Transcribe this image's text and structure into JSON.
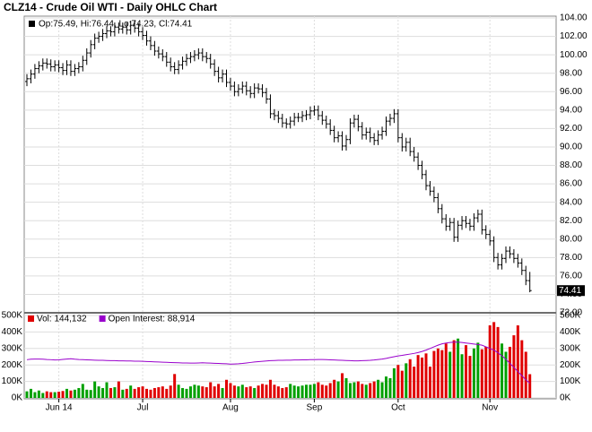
{
  "chart_data": [
    {
      "type": "ohlc",
      "title": "CLZ14 - Crude Oil WTI - Daily OHLC Chart",
      "legend": "Op:75.49, Hi:76.44, Lo:74.23, Cl:74.41",
      "color": "#000000",
      "grid": true,
      "open": [
        97.1,
        97.4,
        97.9,
        98.5,
        98.8,
        99.1,
        99.0,
        98.7,
        98.9,
        98.6,
        98.3,
        98.9,
        98.2,
        98.5,
        98.7,
        99.4,
        100.2,
        101.1,
        101.8,
        102.0,
        102.3,
        102.6,
        102.5,
        103.0,
        102.8,
        103.0,
        102.7,
        103.2,
        102.9,
        102.5,
        102.1,
        101.5,
        101.0,
        100.4,
        100.1,
        99.8,
        99.2,
        98.7,
        98.4,
        98.9,
        99.3,
        99.6,
        99.8,
        100.0,
        100.2,
        99.8,
        99.6,
        99.0,
        98.2,
        97.5,
        97.9,
        97.0,
        96.6,
        96.0,
        96.3,
        96.6,
        96.1,
        95.8,
        96.4,
        96.3,
        95.9,
        95.2,
        93.6,
        93.4,
        93.1,
        92.6,
        92.5,
        92.8,
        93.2,
        93.2,
        93.4,
        93.5,
        93.9,
        94.0,
        93.4,
        92.9,
        92.5,
        91.8,
        91.0,
        91.2,
        90.1,
        90.8,
        92.6,
        93.0,
        92.2,
        91.3,
        91.6,
        91.0,
        90.7,
        91.3,
        91.7,
        92.8,
        93.1,
        93.6,
        91.0,
        90.0,
        90.5,
        89.5,
        88.9,
        88.0,
        87.0,
        85.8,
        85.2,
        84.5,
        83.3,
        82.2,
        81.4,
        81.8,
        80.2,
        81.5,
        82.0,
        81.7,
        81.4,
        82.3,
        82.7,
        81.0,
        80.5,
        79.8,
        78.0,
        77.2,
        77.9,
        78.7,
        78.4,
        77.9,
        77.4,
        76.6,
        75.49
      ],
      "high": [
        97.9,
        98.4,
        99.0,
        99.3,
        99.6,
        99.6,
        99.5,
        99.4,
        99.4,
        99.1,
        99.4,
        99.4,
        99.0,
        99.2,
        99.9,
        100.7,
        101.6,
        102.3,
        102.5,
        102.8,
        103.1,
        103.1,
        103.5,
        103.5,
        103.5,
        103.5,
        103.7,
        103.7,
        103.4,
        103.0,
        102.6,
        102.0,
        101.5,
        100.9,
        100.6,
        100.3,
        99.7,
        99.2,
        99.4,
        99.8,
        100.1,
        100.3,
        100.5,
        100.7,
        100.7,
        100.3,
        100.1,
        99.5,
        98.7,
        98.4,
        98.4,
        97.5,
        97.1,
        96.8,
        97.1,
        97.1,
        96.6,
        96.9,
        96.9,
        96.8,
        96.4,
        95.7,
        94.1,
        93.9,
        93.6,
        93.1,
        93.3,
        93.7,
        93.7,
        93.9,
        94.0,
        94.4,
        94.5,
        94.5,
        93.9,
        93.4,
        93.0,
        92.3,
        91.7,
        91.7,
        91.3,
        93.1,
        93.5,
        93.5,
        92.7,
        92.1,
        92.1,
        91.5,
        91.8,
        92.2,
        93.3,
        93.6,
        94.1,
        94.1,
        91.5,
        91.0,
        91.0,
        90.0,
        89.4,
        88.5,
        87.5,
        86.3,
        85.7,
        85.0,
        83.8,
        82.7,
        82.3,
        82.3,
        82.0,
        82.5,
        82.5,
        82.2,
        82.8,
        83.2,
        83.2,
        81.5,
        81.0,
        80.3,
        78.5,
        78.4,
        79.2,
        79.2,
        78.9,
        78.4,
        77.9,
        77.1,
        76.44
      ],
      "low": [
        96.6,
        96.9,
        97.4,
        98.0,
        98.3,
        98.5,
        98.2,
        98.2,
        98.1,
        97.8,
        97.8,
        97.7,
        97.7,
        98.0,
        98.2,
        98.9,
        99.7,
        100.6,
        101.3,
        101.5,
        101.8,
        102.0,
        102.0,
        102.3,
        102.3,
        102.2,
        102.2,
        102.4,
        102.0,
        101.6,
        101.0,
        100.5,
        99.9,
        99.6,
        99.3,
        98.7,
        98.2,
        97.9,
        97.9,
        98.4,
        98.8,
        99.1,
        99.3,
        99.5,
        99.3,
        99.1,
        98.5,
        97.7,
        97.0,
        97.0,
        96.5,
        96.1,
        95.5,
        95.5,
        95.8,
        95.6,
        95.3,
        95.3,
        95.8,
        95.4,
        94.7,
        93.1,
        92.9,
        92.6,
        92.1,
        92.0,
        92.0,
        92.3,
        92.7,
        92.7,
        92.9,
        93.0,
        93.4,
        92.9,
        92.4,
        92.0,
        91.3,
        90.5,
        90.5,
        89.6,
        89.6,
        90.3,
        92.1,
        91.7,
        90.8,
        90.8,
        90.5,
        90.2,
        90.2,
        90.8,
        91.2,
        92.3,
        92.6,
        90.5,
        89.5,
        89.5,
        89.0,
        88.4,
        87.5,
        86.5,
        85.3,
        84.7,
        84.0,
        82.8,
        81.7,
        80.9,
        80.9,
        79.7,
        79.7,
        81.0,
        81.2,
        80.9,
        80.9,
        81.8,
        80.5,
        80.0,
        79.3,
        77.5,
        76.7,
        76.7,
        77.4,
        77.9,
        77.4,
        76.9,
        76.1,
        75.0,
        74.23
      ],
      "close": [
        97.4,
        97.9,
        98.5,
        98.8,
        99.1,
        99.0,
        98.7,
        98.9,
        98.6,
        98.3,
        98.9,
        98.2,
        98.5,
        98.7,
        99.4,
        100.2,
        101.1,
        101.8,
        102.0,
        102.3,
        102.6,
        102.5,
        103.0,
        102.8,
        103.0,
        102.7,
        103.2,
        102.9,
        102.5,
        102.1,
        101.5,
        101.0,
        100.4,
        100.1,
        99.8,
        99.2,
        98.7,
        98.4,
        98.9,
        99.3,
        99.6,
        99.8,
        100.0,
        100.2,
        99.8,
        99.6,
        99.0,
        98.2,
        97.5,
        97.9,
        97.0,
        96.6,
        96.0,
        96.3,
        96.6,
        96.1,
        95.8,
        96.4,
        96.3,
        95.9,
        95.2,
        93.6,
        93.4,
        93.1,
        92.6,
        92.5,
        92.8,
        93.2,
        93.2,
        93.4,
        93.5,
        93.9,
        94.0,
        93.4,
        92.9,
        92.5,
        91.8,
        91.0,
        91.2,
        90.1,
        90.8,
        92.6,
        93.0,
        92.2,
        91.3,
        91.6,
        91.0,
        90.7,
        91.3,
        91.7,
        92.8,
        93.1,
        93.6,
        91.0,
        90.0,
        90.5,
        89.5,
        88.9,
        88.0,
        87.0,
        85.8,
        85.2,
        84.5,
        83.3,
        82.2,
        81.4,
        81.8,
        80.2,
        81.5,
        82.0,
        81.7,
        81.4,
        82.3,
        82.7,
        81.0,
        80.5,
        79.8,
        78.0,
        77.2,
        77.9,
        78.7,
        78.4,
        77.9,
        77.4,
        76.6,
        75.5,
        74.41
      ],
      "ylim": [
        72,
        104
      ],
      "yticks": [
        {
          "value": 72,
          "label": "72.00"
        },
        {
          "value": 74,
          "label": "74.00"
        },
        {
          "value": 76,
          "label": "76.00"
        },
        {
          "value": 78,
          "label": "78.00"
        },
        {
          "value": 80,
          "label": "80.00"
        },
        {
          "value": 82,
          "label": "82.00"
        },
        {
          "value": 84,
          "label": "84.00"
        },
        {
          "value": 86,
          "label": "86.00"
        },
        {
          "value": 88,
          "label": "88.00"
        },
        {
          "value": 90,
          "label": "90.00"
        },
        {
          "value": 92,
          "label": "92.00"
        },
        {
          "value": 94,
          "label": "94.00"
        },
        {
          "value": 96,
          "label": "96.00"
        },
        {
          "value": 98,
          "label": "98.00"
        },
        {
          "value": 100,
          "label": "100.00"
        },
        {
          "value": 102,
          "label": "102.00"
        },
        {
          "value": 104,
          "label": "104.00"
        }
      ]
    },
    {
      "type": "bar",
      "grid": true,
      "categories": [
        null,
        null,
        null,
        null,
        null,
        null,
        null,
        null,
        "Jun 14",
        null,
        null,
        null,
        null,
        null,
        null,
        null,
        null,
        null,
        null,
        null,
        null,
        null,
        null,
        null,
        null,
        null,
        null,
        null,
        null,
        "Jul",
        null,
        null,
        null,
        null,
        null,
        null,
        null,
        null,
        null,
        null,
        null,
        null,
        null,
        null,
        null,
        null,
        null,
        null,
        null,
        null,
        null,
        "Aug",
        null,
        null,
        null,
        null,
        null,
        null,
        null,
        null,
        null,
        null,
        null,
        null,
        null,
        null,
        null,
        null,
        null,
        null,
        null,
        null,
        "Sep",
        null,
        null,
        null,
        null,
        null,
        null,
        null,
        null,
        null,
        null,
        null,
        null,
        null,
        null,
        null,
        null,
        null,
        null,
        null,
        null,
        "Oct",
        null,
        null,
        null,
        null,
        null,
        null,
        null,
        null,
        null,
        null,
        null,
        null,
        null,
        null,
        null,
        null,
        null,
        null,
        null,
        null,
        null,
        null,
        "Nov",
        null,
        null,
        null,
        null,
        null,
        null,
        null,
        null,
        null,
        null
      ],
      "series": [
        {
          "name": "Vol: 144,132",
          "color": "#e00000",
          "up_color": "#00a000",
          "down_color": "#e00000",
          "values": [
            40000,
            55000,
            35000,
            45000,
            30000,
            40000,
            35000,
            35000,
            38000,
            42000,
            55000,
            45000,
            50000,
            60000,
            85000,
            50000,
            48000,
            100000,
            70000,
            60000,
            95000,
            60000,
            65000,
            100000,
            50000,
            55000,
            75000,
            55000,
            65000,
            70000,
            55000,
            50000,
            60000,
            65000,
            70000,
            55000,
            75000,
            145000,
            80000,
            60000,
            55000,
            70000,
            80000,
            75000,
            70000,
            65000,
            95000,
            70000,
            85000,
            60000,
            110000,
            90000,
            75000,
            70000,
            80000,
            65000,
            70000,
            60000,
            75000,
            85000,
            80000,
            110000,
            80000,
            70000,
            60000,
            65000,
            85000,
            75000,
            70000,
            75000,
            80000,
            80000,
            85000,
            95000,
            80000,
            75000,
            90000,
            110000,
            100000,
            150000,
            120000,
            90000,
            95000,
            100000,
            85000,
            80000,
            90000,
            100000,
            110000,
            95000,
            130000,
            120000,
            180000,
            200000,
            165000,
            210000,
            235000,
            190000,
            260000,
            245000,
            270000,
            190000,
            285000,
            300000,
            290000,
            330000,
            280000,
            350000,
            360000,
            265000,
            320000,
            255000,
            300000,
            335000,
            295000,
            310000,
            440000,
            460000,
            430000,
            330000,
            280000,
            310000,
            380000,
            440000,
            350000,
            280000,
            144132
          ]
        },
        {
          "name": "Open Interest: 88,914",
          "type": "line",
          "color": "#9900cc",
          "values": [
            232000,
            235000,
            236000,
            236000,
            235000,
            233000,
            232000,
            230000,
            231000,
            234000,
            236000,
            238000,
            235000,
            233000,
            232000,
            231000,
            230000,
            229000,
            228000,
            228000,
            227000,
            226000,
            226000,
            225000,
            225000,
            224000,
            224000,
            223000,
            223000,
            222000,
            221000,
            220000,
            219000,
            218000,
            217000,
            216000,
            215000,
            214000,
            213000,
            212000,
            212000,
            211000,
            211000,
            212000,
            213000,
            212000,
            211000,
            210000,
            209000,
            208000,
            207000,
            205000,
            206000,
            207000,
            209000,
            212000,
            215000,
            218000,
            220000,
            222000,
            224000,
            226000,
            227000,
            228000,
            228000,
            229000,
            229000,
            230000,
            230000,
            231000,
            231000,
            232000,
            232000,
            233000,
            233000,
            232000,
            231000,
            230000,
            229000,
            228000,
            227000,
            226000,
            225000,
            225000,
            226000,
            227000,
            228000,
            230000,
            233000,
            236000,
            240000,
            245000,
            250000,
            255000,
            258000,
            262000,
            266000,
            270000,
            275000,
            282000,
            290000,
            300000,
            310000,
            320000,
            328000,
            333000,
            336000,
            338000,
            338000,
            336000,
            333000,
            330000,
            327000,
            324000,
            320000,
            310000,
            300000,
            290000,
            275000,
            255000,
            235000,
            210000,
            185000,
            160000,
            135000,
            110000,
            88914
          ]
        }
      ],
      "ylim": [
        0,
        500000
      ],
      "yticks": [
        {
          "value": 0,
          "label": "0K"
        },
        {
          "value": 100000,
          "label": "100K"
        },
        {
          "value": 200000,
          "label": "200K"
        },
        {
          "value": 300000,
          "label": "300K"
        },
        {
          "value": 400000,
          "label": "400K"
        },
        {
          "value": 500000,
          "label": "500K"
        }
      ]
    }
  ]
}
